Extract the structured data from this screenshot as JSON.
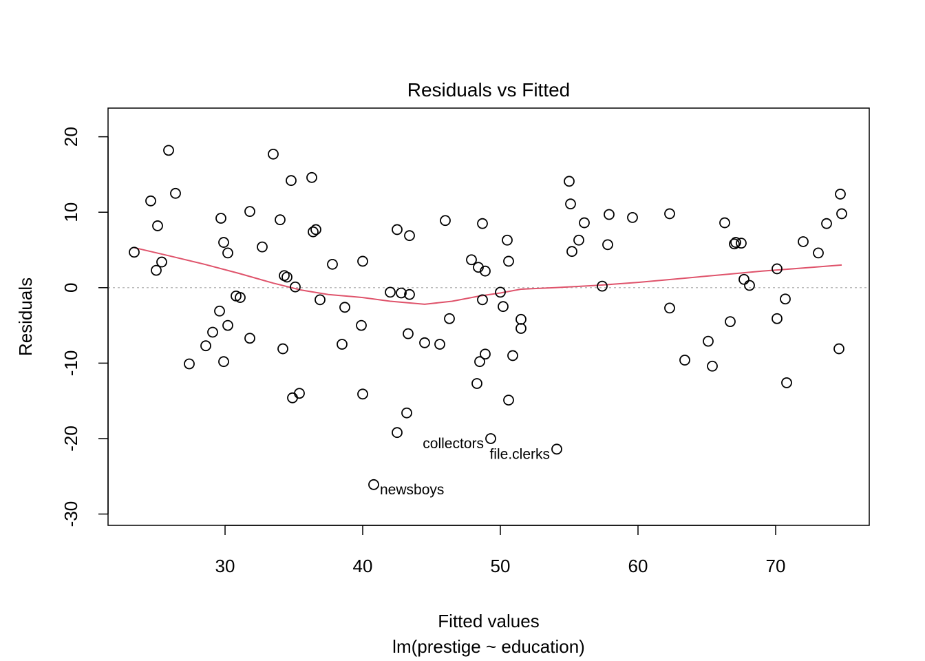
{
  "chart_data": {
    "type": "scatter",
    "title": "Residuals vs Fitted",
    "xlabel": "Fitted values",
    "subtitle": "lm(prestige ~ education)",
    "ylabel": "Residuals",
    "xlim": [
      21.5,
      76.8
    ],
    "ylim": [
      -31.5,
      23.8
    ],
    "x_ticks": [
      30,
      40,
      50,
      60,
      70
    ],
    "y_ticks": [
      20,
      10,
      0,
      -10,
      -20,
      -30
    ],
    "x_tick_labels": [
      "30",
      "40",
      "50",
      "60",
      "70"
    ],
    "y_tick_labels": [
      "20",
      "10",
      "0",
      "-10",
      "-20",
      "-30"
    ],
    "reference_line": {
      "y": 0,
      "style": "dotted",
      "color": "#bbbbbb"
    },
    "point_color": "#000000",
    "smooth_color": "#DF536B",
    "points": [
      {
        "x": 23.4,
        "y": 4.7
      },
      {
        "x": 24.6,
        "y": 11.5
      },
      {
        "x": 25.0,
        "y": 2.3
      },
      {
        "x": 25.1,
        "y": 8.2
      },
      {
        "x": 25.4,
        "y": 3.4
      },
      {
        "x": 25.9,
        "y": 18.2
      },
      {
        "x": 26.4,
        "y": 12.5
      },
      {
        "x": 27.4,
        "y": -10.1
      },
      {
        "x": 28.6,
        "y": -7.7
      },
      {
        "x": 29.1,
        "y": -5.9
      },
      {
        "x": 29.6,
        "y": -3.1
      },
      {
        "x": 29.7,
        "y": 9.2
      },
      {
        "x": 29.9,
        "y": -9.8
      },
      {
        "x": 29.9,
        "y": 6.0
      },
      {
        "x": 30.2,
        "y": 4.6
      },
      {
        "x": 30.2,
        "y": -5.0
      },
      {
        "x": 30.8,
        "y": -1.1
      },
      {
        "x": 31.1,
        "y": -1.3
      },
      {
        "x": 31.8,
        "y": 10.1
      },
      {
        "x": 31.8,
        "y": -6.7
      },
      {
        "x": 32.7,
        "y": 5.4
      },
      {
        "x": 33.5,
        "y": 17.7
      },
      {
        "x": 34.0,
        "y": 9.0
      },
      {
        "x": 34.2,
        "y": -8.1
      },
      {
        "x": 34.3,
        "y": 1.6
      },
      {
        "x": 34.5,
        "y": 1.4
      },
      {
        "x": 34.8,
        "y": 14.2
      },
      {
        "x": 34.9,
        "y": -14.6
      },
      {
        "x": 35.1,
        "y": 0.1
      },
      {
        "x": 35.4,
        "y": -14.0
      },
      {
        "x": 36.3,
        "y": 14.6
      },
      {
        "x": 36.4,
        "y": 7.4
      },
      {
        "x": 36.6,
        "y": 7.7
      },
      {
        "x": 36.9,
        "y": -1.6
      },
      {
        "x": 37.8,
        "y": 3.1
      },
      {
        "x": 38.5,
        "y": -7.5
      },
      {
        "x": 38.7,
        "y": -2.6
      },
      {
        "x": 39.9,
        "y": -5.0
      },
      {
        "x": 40.0,
        "y": 3.5
      },
      {
        "x": 40.0,
        "y": -14.1
      },
      {
        "x": 40.8,
        "y": -26.1
      },
      {
        "x": 42.0,
        "y": -0.6
      },
      {
        "x": 42.5,
        "y": 7.7
      },
      {
        "x": 42.5,
        "y": -19.2
      },
      {
        "x": 42.8,
        "y": -0.7
      },
      {
        "x": 43.2,
        "y": -16.6
      },
      {
        "x": 43.3,
        "y": -6.1
      },
      {
        "x": 43.4,
        "y": 6.9
      },
      {
        "x": 43.4,
        "y": -0.9
      },
      {
        "x": 44.5,
        "y": -7.3
      },
      {
        "x": 45.6,
        "y": -7.5
      },
      {
        "x": 46.0,
        "y": 8.9
      },
      {
        "x": 46.3,
        "y": -4.1
      },
      {
        "x": 47.9,
        "y": 3.7
      },
      {
        "x": 48.3,
        "y": -12.7
      },
      {
        "x": 48.4,
        "y": 2.7
      },
      {
        "x": 48.5,
        "y": -9.8
      },
      {
        "x": 48.7,
        "y": 8.5
      },
      {
        "x": 48.7,
        "y": -1.6
      },
      {
        "x": 48.9,
        "y": 2.2
      },
      {
        "x": 48.9,
        "y": -8.8
      },
      {
        "x": 49.3,
        "y": -20.0
      },
      {
        "x": 50.0,
        "y": -0.6
      },
      {
        "x": 50.2,
        "y": -2.5
      },
      {
        "x": 50.5,
        "y": 6.3
      },
      {
        "x": 50.6,
        "y": 3.5
      },
      {
        "x": 50.6,
        "y": -14.9
      },
      {
        "x": 50.9,
        "y": -9.0
      },
      {
        "x": 51.5,
        "y": -4.2
      },
      {
        "x": 51.5,
        "y": -5.4
      },
      {
        "x": 54.1,
        "y": -21.4
      },
      {
        "x": 55.0,
        "y": 14.1
      },
      {
        "x": 55.1,
        "y": 11.1
      },
      {
        "x": 55.2,
        "y": 4.8
      },
      {
        "x": 55.7,
        "y": 6.3
      },
      {
        "x": 56.1,
        "y": 8.6
      },
      {
        "x": 57.4,
        "y": 0.2
      },
      {
        "x": 57.8,
        "y": 5.7
      },
      {
        "x": 57.9,
        "y": 9.7
      },
      {
        "x": 59.6,
        "y": 9.3
      },
      {
        "x": 62.3,
        "y": 9.8
      },
      {
        "x": 62.3,
        "y": -2.7
      },
      {
        "x": 63.4,
        "y": -9.6
      },
      {
        "x": 65.1,
        "y": -7.1
      },
      {
        "x": 65.4,
        "y": -10.4
      },
      {
        "x": 66.3,
        "y": 8.6
      },
      {
        "x": 66.7,
        "y": -4.5
      },
      {
        "x": 67.0,
        "y": 5.8
      },
      {
        "x": 67.1,
        "y": 6.0
      },
      {
        "x": 67.5,
        "y": 5.9
      },
      {
        "x": 67.7,
        "y": 1.1
      },
      {
        "x": 68.1,
        "y": 0.3
      },
      {
        "x": 70.1,
        "y": 2.5
      },
      {
        "x": 70.1,
        "y": -4.1
      },
      {
        "x": 70.7,
        "y": -1.5
      },
      {
        "x": 70.8,
        "y": -12.6
      },
      {
        "x": 72.0,
        "y": 6.1
      },
      {
        "x": 73.1,
        "y": 4.6
      },
      {
        "x": 73.7,
        "y": 8.5
      },
      {
        "x": 74.6,
        "y": -8.1
      },
      {
        "x": 74.7,
        "y": 12.4
      },
      {
        "x": 74.8,
        "y": 9.8
      }
    ],
    "smooth_line": [
      {
        "x": 23.4,
        "y": 5.3
      },
      {
        "x": 26.0,
        "y": 4.2
      },
      {
        "x": 28.5,
        "y": 3.1
      },
      {
        "x": 31.0,
        "y": 1.9
      },
      {
        "x": 33.5,
        "y": 0.6
      },
      {
        "x": 35.5,
        "y": -0.3
      },
      {
        "x": 37.5,
        "y": -0.9
      },
      {
        "x": 40.0,
        "y": -1.3
      },
      {
        "x": 42.0,
        "y": -1.8
      },
      {
        "x": 44.5,
        "y": -2.2
      },
      {
        "x": 46.5,
        "y": -1.8
      },
      {
        "x": 48.5,
        "y": -1.1
      },
      {
        "x": 50.0,
        "y": -0.7
      },
      {
        "x": 51.5,
        "y": -0.2
      },
      {
        "x": 54.0,
        "y": 0.0
      },
      {
        "x": 57.0,
        "y": 0.3
      },
      {
        "x": 60.0,
        "y": 0.7
      },
      {
        "x": 63.0,
        "y": 1.2
      },
      {
        "x": 66.0,
        "y": 1.7
      },
      {
        "x": 69.0,
        "y": 2.2
      },
      {
        "x": 72.0,
        "y": 2.6
      },
      {
        "x": 74.8,
        "y": 3.0
      }
    ],
    "annotations": [
      {
        "text": "collectors",
        "x": 49.3,
        "y": -20.0,
        "anchor": "end"
      },
      {
        "text": "file.clerks",
        "x": 54.1,
        "y": -21.4,
        "anchor": "end"
      },
      {
        "text": "newsboys",
        "x": 40.8,
        "y": -26.1,
        "anchor": "start"
      }
    ]
  }
}
